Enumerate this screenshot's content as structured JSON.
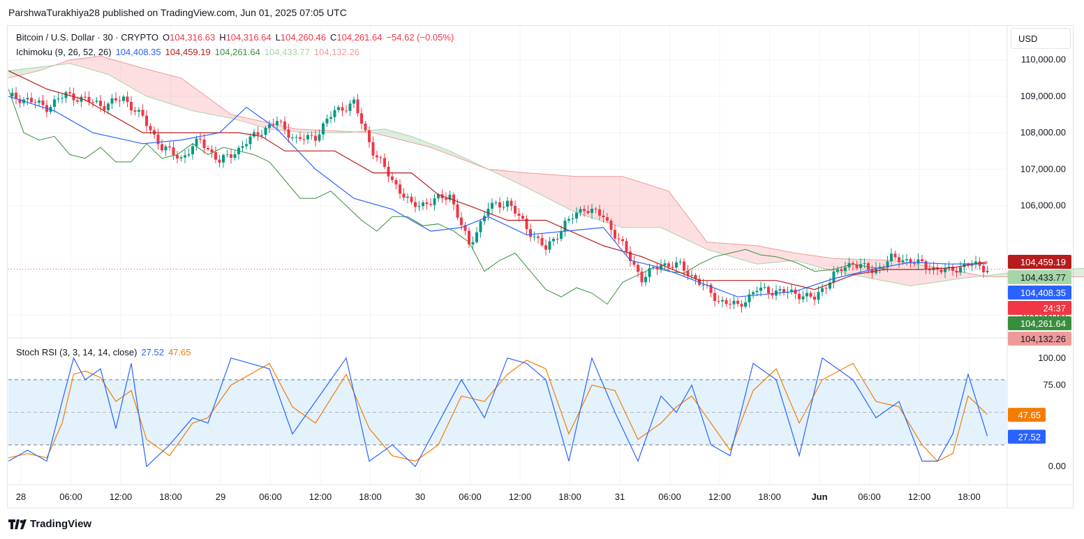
{
  "header": {
    "publisher": "ParshwaTurakhiya28 published on TradingView.com, Jun 01, 2025 07:05 UTC"
  },
  "currency_button": "USD",
  "legend_main": {
    "symbol": "Bitcoin / U.S. Dollar · 30 · CRYPTO",
    "o_label": "O",
    "o": "104,316.63",
    "h_label": "H",
    "h": "104,316.64",
    "l_label": "L",
    "l": "104,260.46",
    "c_label": "C",
    "c": "104,261.64",
    "change": "−54.62 (−0.05%)"
  },
  "legend_ichimoku": {
    "name": "Ichimoku (9, 26, 52, 26)",
    "conversion": "104,408.35",
    "base": "104,459.19",
    "lagging": "104,261.64",
    "lead_a": "104,433.77",
    "lead_b": "104,132.26"
  },
  "legend_stoch": {
    "name": "Stoch RSI (3, 3, 14, 14, close)",
    "k": "27.52",
    "d": "47.65"
  },
  "colors": {
    "up": "#089981",
    "down": "#f23645",
    "conversion": "#2962ff",
    "base": "#b71c1c",
    "lagging": "#388e3c",
    "lead_a": "#a5d6a7",
    "lead_b": "#ef9a9a",
    "stoch_k": "#2962ff",
    "stoch_d": "#f57c00",
    "band": "#e3f2fd"
  },
  "price_labels": [
    {
      "text": "104,459.19",
      "value": 104459.19,
      "bg": "#b71c1c",
      "fg": "#ffffff"
    },
    {
      "text": "104,433.77",
      "value": 104433.77,
      "bg": "#a5d6a7",
      "fg": "#131722"
    },
    {
      "text": "104,408.35",
      "value": 104408.35,
      "bg": "#2962ff",
      "fg": "#ffffff"
    },
    {
      "text": "24:37",
      "value": 104345,
      "bg": "#f23645",
      "fg": "#ffffff"
    },
    {
      "text": "104,261.64",
      "value": 104261.64,
      "bg": "#388e3c",
      "fg": "#ffffff"
    },
    {
      "text": "104,132.26",
      "value": 104132.26,
      "bg": "#ef9a9a",
      "fg": "#131722"
    }
  ],
  "stoch_labels": [
    {
      "text": "47.65",
      "value": 47.65,
      "bg": "#f57c00"
    },
    {
      "text": "27.52",
      "value": 27.52,
      "bg": "#2962ff"
    }
  ],
  "brand": "TradingView",
  "chart_data": {
    "type": "candlestick",
    "y_ticks": [
      "110,000.00",
      "109,000.00",
      "108,000.00",
      "107,000.00",
      "106,000.00",
      "103,000.00"
    ],
    "y_tick_values": [
      110000,
      109000,
      108000,
      107000,
      106000,
      103000
    ],
    "ylim": [
      102450,
      110300
    ],
    "x_ticks": [
      "28",
      "06:00",
      "12:00",
      "18:00",
      "29",
      "06:00",
      "12:00",
      "18:00",
      "30",
      "06:00",
      "12:00",
      "18:00",
      "31",
      "06:00",
      "12:00",
      "18:00",
      "Jun",
      "06:00",
      "12:00",
      "18:00"
    ],
    "x_tick_bold": [
      false,
      false,
      false,
      false,
      false,
      false,
      false,
      false,
      false,
      false,
      false,
      false,
      false,
      false,
      false,
      false,
      true,
      false,
      false,
      false
    ],
    "close_path": [
      [
        0,
        109000
      ],
      [
        5,
        108900
      ],
      [
        10,
        108700
      ],
      [
        15,
        109050
      ],
      [
        20,
        108900
      ],
      [
        25,
        108750
      ],
      [
        30,
        108950
      ],
      [
        35,
        108400
      ],
      [
        40,
        107600
      ],
      [
        45,
        107300
      ],
      [
        50,
        107800
      ],
      [
        55,
        107200
      ],
      [
        60,
        107550
      ],
      [
        65,
        108000
      ],
      [
        70,
        108300
      ],
      [
        75,
        107800
      ],
      [
        80,
        107900
      ],
      [
        85,
        108600
      ],
      [
        90,
        108800
      ],
      [
        95,
        107500
      ],
      [
        100,
        106700
      ],
      [
        105,
        106000
      ],
      [
        110,
        106100
      ],
      [
        115,
        106300
      ],
      [
        120,
        104900
      ],
      [
        125,
        105950
      ],
      [
        130,
        106100
      ],
      [
        135,
        105400
      ],
      [
        140,
        104800
      ],
      [
        145,
        105500
      ],
      [
        150,
        105950
      ],
      [
        155,
        105700
      ],
      [
        160,
        104900
      ],
      [
        165,
        104000
      ],
      [
        170,
        104400
      ],
      [
        175,
        104350
      ],
      [
        180,
        103900
      ],
      [
        185,
        103400
      ],
      [
        190,
        103250
      ],
      [
        195,
        103700
      ],
      [
        200,
        103650
      ],
      [
        205,
        103600
      ],
      [
        210,
        103450
      ],
      [
        215,
        104100
      ],
      [
        220,
        104450
      ],
      [
        225,
        104200
      ],
      [
        230,
        104550
      ],
      [
        235,
        104500
      ],
      [
        240,
        104300
      ],
      [
        245,
        104200
      ],
      [
        250,
        104400
      ],
      [
        255,
        104270
      ]
    ],
    "ichimoku": {
      "conversion": [
        [
          0,
          109000
        ],
        [
          12,
          108600
        ],
        [
          22,
          108000
        ],
        [
          35,
          107700
        ],
        [
          45,
          107800
        ],
        [
          55,
          108000
        ],
        [
          62,
          108700
        ],
        [
          70,
          108100
        ],
        [
          80,
          107000
        ],
        [
          90,
          106200
        ],
        [
          100,
          105900
        ],
        [
          110,
          105300
        ],
        [
          118,
          105400
        ],
        [
          125,
          105700
        ],
        [
          135,
          105200
        ],
        [
          145,
          105300
        ],
        [
          155,
          105400
        ],
        [
          162,
          104500
        ],
        [
          170,
          104300
        ],
        [
          180,
          103900
        ],
        [
          190,
          103500
        ],
        [
          205,
          103650
        ],
        [
          215,
          104000
        ],
        [
          225,
          104250
        ],
        [
          235,
          104450
        ],
        [
          245,
          104400
        ],
        [
          255,
          104410
        ]
      ],
      "base": [
        [
          0,
          109700
        ],
        [
          10,
          109200
        ],
        [
          20,
          108900
        ],
        [
          35,
          108000
        ],
        [
          50,
          108000
        ],
        [
          60,
          108000
        ],
        [
          66,
          107900
        ],
        [
          72,
          107500
        ],
        [
          85,
          107500
        ],
        [
          95,
          106900
        ],
        [
          105,
          106900
        ],
        [
          112,
          106300
        ],
        [
          120,
          106000
        ],
        [
          130,
          105600
        ],
        [
          140,
          105600
        ],
        [
          155,
          104900
        ],
        [
          165,
          104600
        ],
        [
          180,
          103950
        ],
        [
          200,
          103950
        ],
        [
          210,
          103700
        ],
        [
          220,
          104100
        ],
        [
          228,
          104250
        ],
        [
          238,
          104250
        ],
        [
          246,
          104300
        ],
        [
          255,
          104460
        ]
      ]
    },
    "cloud": {
      "lead_a": [
        [
          0,
          109700
        ],
        [
          8,
          109800
        ],
        [
          16,
          109900
        ],
        [
          26,
          109600
        ],
        [
          36,
          109000
        ],
        [
          48,
          108600
        ],
        [
          58,
          108400
        ],
        [
          68,
          108100
        ],
        [
          78,
          108000
        ],
        [
          88,
          108000
        ],
        [
          98,
          108100
        ],
        [
          105,
          107900
        ],
        [
          115,
          107500
        ],
        [
          125,
          107000
        ],
        [
          135,
          106500
        ],
        [
          148,
          105800
        ],
        [
          160,
          105400
        ],
        [
          170,
          105400
        ],
        [
          182,
          104800
        ],
        [
          195,
          104400
        ],
        [
          205,
          104500
        ],
        [
          215,
          104200
        ],
        [
          225,
          104000
        ],
        [
          235,
          103800
        ],
        [
          248,
          104000
        ],
        [
          260,
          104150
        ],
        [
          275,
          104250
        ],
        [
          283,
          104300
        ]
      ],
      "lead_b": [
        [
          0,
          109500
        ],
        [
          8,
          109700
        ],
        [
          16,
          110000
        ],
        [
          24,
          110100
        ],
        [
          34,
          109800
        ],
        [
          45,
          109500
        ],
        [
          58,
          108500
        ],
        [
          75,
          108100
        ],
        [
          95,
          108000
        ],
        [
          110,
          107600
        ],
        [
          125,
          107000
        ],
        [
          135,
          106900
        ],
        [
          148,
          106800
        ],
        [
          160,
          106800
        ],
        [
          172,
          106400
        ],
        [
          182,
          105000
        ],
        [
          195,
          104900
        ],
        [
          205,
          104700
        ],
        [
          215,
          104550
        ],
        [
          230,
          104500
        ],
        [
          245,
          104250
        ],
        [
          255,
          104050
        ],
        [
          265,
          104050
        ],
        [
          283,
          104050
        ]
      ]
    },
    "lagging": [
      [
        0,
        109200
      ],
      [
        4,
        108000
      ],
      [
        8,
        107800
      ],
      [
        12,
        107900
      ],
      [
        16,
        107400
      ],
      [
        20,
        107300
      ],
      [
        24,
        107600
      ],
      [
        28,
        107200
      ],
      [
        32,
        107200
      ],
      [
        36,
        107700
      ],
      [
        40,
        107300
      ],
      [
        44,
        107400
      ],
      [
        48,
        107700
      ],
      [
        52,
        107400
      ],
      [
        56,
        107600
      ],
      [
        60,
        107500
      ],
      [
        64,
        107400
      ],
      [
        68,
        107200
      ],
      [
        72,
        106700
      ],
      [
        76,
        106200
      ],
      [
        80,
        106200
      ],
      [
        84,
        106400
      ],
      [
        88,
        106000
      ],
      [
        92,
        105600
      ],
      [
        96,
        105300
      ],
      [
        100,
        105700
      ],
      [
        104,
        105700
      ],
      [
        108,
        105450
      ],
      [
        112,
        105500
      ],
      [
        116,
        105300
      ],
      [
        120,
        105000
      ],
      [
        124,
        104200
      ],
      [
        128,
        104500
      ],
      [
        132,
        104700
      ],
      [
        136,
        104200
      ],
      [
        140,
        103700
      ],
      [
        144,
        103500
      ],
      [
        148,
        103750
      ],
      [
        152,
        103600
      ],
      [
        156,
        103300
      ],
      [
        160,
        103900
      ],
      [
        164,
        104100
      ],
      [
        168,
        104300
      ],
      [
        172,
        104200
      ],
      [
        176,
        104150
      ],
      [
        180,
        104400
      ],
      [
        184,
        104600
      ],
      [
        188,
        104700
      ],
      [
        192,
        104800
      ],
      [
        196,
        104650
      ],
      [
        200,
        104600
      ],
      [
        205,
        104450
      ],
      [
        210,
        104200
      ],
      [
        215,
        104250
      ],
      [
        220,
        104400
      ],
      [
        225,
        104300
      ],
      [
        229,
        104262
      ]
    ],
    "stoch": {
      "ylim": [
        -5,
        105
      ],
      "y_ticks": [
        "100.00",
        "75.00",
        "0.00"
      ],
      "y_tick_values": [
        100,
        75,
        0
      ],
      "band": [
        20,
        80
      ],
      "midline": 50,
      "k": [
        [
          0,
          5
        ],
        [
          5,
          15
        ],
        [
          10,
          5
        ],
        [
          14,
          60
        ],
        [
          17,
          100
        ],
        [
          20,
          80
        ],
        [
          24,
          90
        ],
        [
          28,
          35
        ],
        [
          32,
          95
        ],
        [
          36,
          0
        ],
        [
          42,
          20
        ],
        [
          48,
          45
        ],
        [
          52,
          40
        ],
        [
          58,
          100
        ],
        [
          68,
          90
        ],
        [
          74,
          30
        ],
        [
          80,
          60
        ],
        [
          88,
          100
        ],
        [
          94,
          5
        ],
        [
          100,
          20
        ],
        [
          106,
          0
        ],
        [
          112,
          40
        ],
        [
          118,
          80
        ],
        [
          124,
          45
        ],
        [
          130,
          100
        ],
        [
          135,
          95
        ],
        [
          140,
          80
        ],
        [
          146,
          5
        ],
        [
          152,
          100
        ],
        [
          158,
          50
        ],
        [
          164,
          5
        ],
        [
          170,
          65
        ],
        [
          174,
          50
        ],
        [
          178,
          75
        ],
        [
          183,
          20
        ],
        [
          188,
          10
        ],
        [
          194,
          95
        ],
        [
          200,
          80
        ],
        [
          206,
          10
        ],
        [
          212,
          100
        ],
        [
          220,
          80
        ],
        [
          226,
          45
        ],
        [
          232,
          60
        ],
        [
          238,
          5
        ],
        [
          242,
          5
        ],
        [
          246,
          30
        ],
        [
          250,
          85
        ],
        [
          255,
          28
        ]
      ],
      "d": [
        [
          0,
          8
        ],
        [
          5,
          12
        ],
        [
          10,
          8
        ],
        [
          14,
          40
        ],
        [
          17,
          85
        ],
        [
          20,
          88
        ],
        [
          24,
          82
        ],
        [
          28,
          60
        ],
        [
          32,
          70
        ],
        [
          36,
          25
        ],
        [
          42,
          10
        ],
        [
          48,
          40
        ],
        [
          52,
          45
        ],
        [
          58,
          75
        ],
        [
          68,
          95
        ],
        [
          74,
          55
        ],
        [
          80,
          40
        ],
        [
          88,
          85
        ],
        [
          94,
          35
        ],
        [
          100,
          10
        ],
        [
          106,
          5
        ],
        [
          112,
          20
        ],
        [
          118,
          65
        ],
        [
          124,
          60
        ],
        [
          130,
          85
        ],
        [
          135,
          98
        ],
        [
          140,
          90
        ],
        [
          146,
          30
        ],
        [
          152,
          75
        ],
        [
          158,
          70
        ],
        [
          164,
          25
        ],
        [
          170,
          40
        ],
        [
          174,
          55
        ],
        [
          178,
          65
        ],
        [
          183,
          40
        ],
        [
          188,
          15
        ],
        [
          194,
          70
        ],
        [
          200,
          90
        ],
        [
          206,
          40
        ],
        [
          212,
          80
        ],
        [
          220,
          95
        ],
        [
          226,
          60
        ],
        [
          232,
          55
        ],
        [
          238,
          20
        ],
        [
          242,
          5
        ],
        [
          246,
          12
        ],
        [
          250,
          65
        ],
        [
          255,
          48
        ]
      ]
    }
  }
}
